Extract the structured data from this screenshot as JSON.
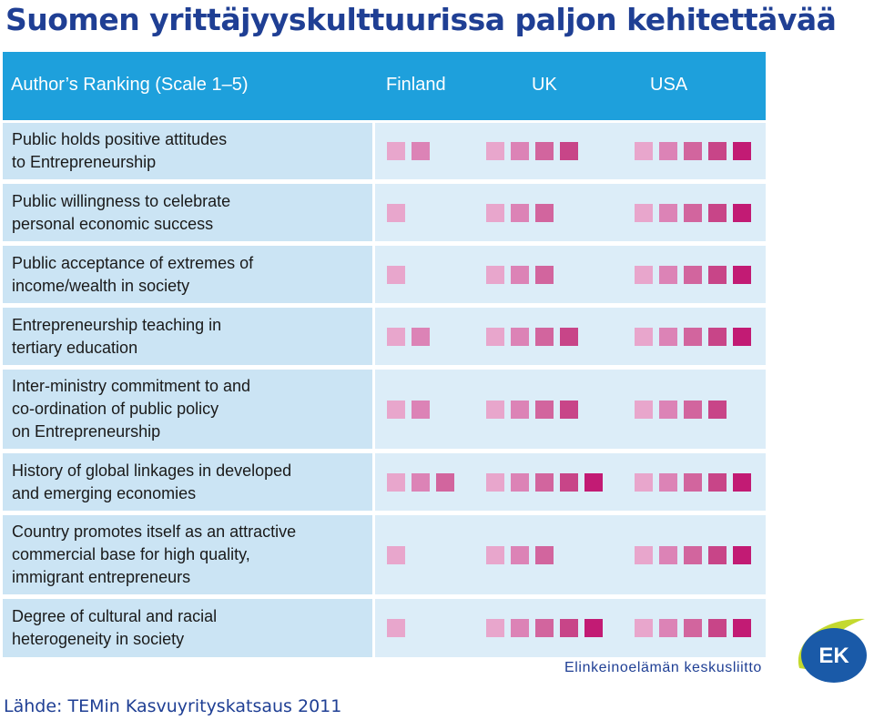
{
  "title": "Suomen yrittäjyyskulttuurissa paljon kehitettävää",
  "source": "Lähde: TEMin Kasvuyrityskatsaus 2011",
  "logo": {
    "name": "Elinkeinoelämän keskusliitto",
    "badge": "EK"
  },
  "colors": {
    "header_bg": "#1ea0dc",
    "scale": [
      "#e8a6cc",
      "#dc83b6",
      "#d2659e",
      "#c84588",
      "#c21b74"
    ]
  },
  "chart_data": {
    "type": "table",
    "header": {
      "label": "Author’s Ranking (Scale 1–5)",
      "countries": [
        "Finland",
        "UK",
        "USA"
      ]
    },
    "scale_max": 5,
    "rows": [
      {
        "label": "Public holds positive attitudes\nto Entrepreneurship",
        "values": [
          2,
          4,
          5
        ]
      },
      {
        "label": "Public willingness to celebrate\npersonal economic success",
        "values": [
          1,
          3,
          5
        ]
      },
      {
        "label": "Public acceptance of extremes of\nincome/wealth in society",
        "values": [
          1,
          3,
          5
        ]
      },
      {
        "label": "Entrepreneurship teaching in\ntertiary education",
        "values": [
          2,
          4,
          5
        ]
      },
      {
        "label": "Inter-ministry commitment to and\nco-ordination of public policy\non Entrepreneurship",
        "values": [
          2,
          4,
          4
        ]
      },
      {
        "label": "History of global linkages in developed\nand emerging economies",
        "values": [
          3,
          5,
          5
        ]
      },
      {
        "label": "Country promotes itself as an attractive\ncommercial base for high quality,\nimmigrant entrepreneurs",
        "values": [
          1,
          3,
          5
        ]
      },
      {
        "label": "Degree of cultural and racial\nheterogeneity in society",
        "values": [
          1,
          5,
          5
        ]
      }
    ]
  }
}
